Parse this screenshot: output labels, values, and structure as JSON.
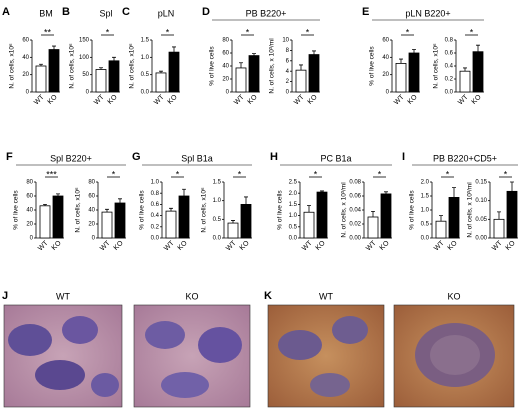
{
  "chart_data": [
    {
      "type": "bar",
      "panel": "A",
      "title": "BM",
      "ylabel": "N. of cells, x10⁶",
      "categories": [
        "WT",
        "KO"
      ],
      "values": [
        30,
        49
      ],
      "errors": [
        2,
        4
      ],
      "significance": "**",
      "ylim": [
        0,
        60
      ],
      "yticks": [
        0,
        20,
        40,
        60
      ]
    },
    {
      "type": "bar",
      "panel": "B",
      "title": "Spl",
      "ylabel": "N. of cells, x10⁶",
      "categories": [
        "WT",
        "KO"
      ],
      "values": [
        65,
        90
      ],
      "errors": [
        5,
        10
      ],
      "significance": "*",
      "ylim": [
        0,
        150
      ],
      "yticks": [
        0,
        50,
        100,
        150
      ]
    },
    {
      "type": "bar",
      "panel": "C",
      "title": "pLN",
      "ylabel": "N. of cells, x10⁶",
      "categories": [
        "WT",
        "KO"
      ],
      "values": [
        0.55,
        1.15
      ],
      "errors": [
        0.05,
        0.15
      ],
      "significance": "*",
      "ylim": [
        0,
        1.5
      ],
      "yticks": [
        {
          "value": 0,
          "label": "0.0"
        },
        0.5,
        {
          "value": 1,
          "label": "1.0"
        },
        1.5
      ]
    },
    {
      "type": "bar",
      "panel": "D",
      "title": "PB B220+",
      "ylabel": "% of live cells",
      "categories": [
        "WT",
        "KO"
      ],
      "values": [
        37,
        56
      ],
      "errors": [
        8,
        3
      ],
      "significance": "*",
      "ylim": [
        0,
        80
      ],
      "yticks": [
        0,
        20,
        40,
        60,
        80
      ]
    },
    {
      "type": "bar",
      "ylabel": "N. of cells, x 10³/ml",
      "categories": [
        "WT",
        "KO"
      ],
      "values": [
        4.2,
        7.2
      ],
      "errors": [
        1.0,
        0.7
      ],
      "significance": "*",
      "ylim": [
        0,
        10
      ],
      "yticks": [
        0,
        2,
        4,
        6,
        8,
        10
      ]
    },
    {
      "type": "bar",
      "panel": "E",
      "title": "pLN B220+",
      "ylabel": "% of live cells",
      "categories": [
        "WT",
        "KO"
      ],
      "values": [
        33,
        45
      ],
      "errors": [
        5,
        4
      ],
      "significance": "*",
      "ylim": [
        0,
        60
      ],
      "yticks": [
        0,
        20,
        40,
        60
      ]
    },
    {
      "type": "bar",
      "ylabel": "N. of cells, x10⁶",
      "categories": [
        "WT",
        "KO"
      ],
      "values": [
        0.32,
        0.62
      ],
      "errors": [
        0.05,
        0.1
      ],
      "significance": "*",
      "ylim": [
        0,
        0.8
      ],
      "yticks": [
        {
          "value": 0,
          "label": "0.0"
        },
        0.2,
        0.4,
        0.6,
        0.8
      ]
    },
    {
      "type": "bar",
      "panel": "F",
      "title": "Spl B220+",
      "ylabel": "% of live cells",
      "categories": [
        "WT",
        "KO"
      ],
      "values": [
        46,
        60
      ],
      "errors": [
        2,
        3
      ],
      "significance": "***",
      "ylim": [
        0,
        80
      ],
      "yticks": [
        0,
        20,
        40,
        60,
        80
      ]
    },
    {
      "type": "bar",
      "ylabel": "N. of cells, x10⁶",
      "categories": [
        "WT",
        "KO"
      ],
      "values": [
        37,
        50
      ],
      "errors": [
        4,
        6
      ],
      "significance": "*",
      "ylim": [
        0,
        80
      ],
      "yticks": [
        0,
        20,
        40,
        60,
        80
      ]
    },
    {
      "type": "bar",
      "panel": "G",
      "title": "Spl B1a",
      "ylabel": "% of live cells",
      "categories": [
        "WT",
        "KO"
      ],
      "values": [
        0.48,
        0.75
      ],
      "errors": [
        0.05,
        0.12
      ],
      "significance": "*",
      "ylim": [
        0,
        1
      ],
      "yticks": [
        {
          "value": 0,
          "label": "0.0"
        },
        0.2,
        0.4,
        0.6,
        0.8,
        {
          "value": 1,
          "label": "1.0"
        }
      ]
    },
    {
      "type": "bar",
      "ylabel": "N. of cells, x10⁶",
      "categories": [
        "WT",
        "KO"
      ],
      "values": [
        0.4,
        0.9
      ],
      "errors": [
        0.07,
        0.2
      ],
      "significance": "*",
      "ylim": [
        0,
        1.5
      ],
      "yticks": [
        {
          "value": 0,
          "label": "0.0"
        },
        0.5,
        {
          "value": 1,
          "label": "1.0"
        },
        1.5
      ]
    },
    {
      "type": "bar",
      "panel": "H",
      "title": "PC B1a",
      "ylabel": "% of live cells",
      "categories": [
        "WT",
        "KO"
      ],
      "values": [
        1.15,
        2.05
      ],
      "errors": [
        0.3,
        0.05
      ],
      "significance": "*",
      "ylim": [
        0,
        2.5
      ],
      "yticks": [
        {
          "value": 0,
          "label": "0.0"
        },
        0.5,
        {
          "value": 1,
          "label": "1.0"
        },
        1.5,
        {
          "value": 2,
          "label": "2.0"
        },
        2.5
      ]
    },
    {
      "type": "bar",
      "ylabel": "N. of cells, x 10³/ml",
      "categories": [
        "WT",
        "KO"
      ],
      "values": [
        0.03,
        0.063
      ],
      "errors": [
        0.008,
        0.003
      ],
      "significance": "*",
      "ylim": [
        0,
        0.08
      ],
      "yticks": [
        {
          "value": 0,
          "label": "0.00"
        },
        0.02,
        0.04,
        0.06,
        0.08
      ]
    },
    {
      "type": "bar",
      "panel": "I",
      "title": "PB B220+CD5+",
      "ylabel": "% of live cells",
      "categories": [
        "WT",
        "KO"
      ],
      "values": [
        0.6,
        1.45
      ],
      "errors": [
        0.2,
        0.35
      ],
      "significance": "*",
      "ylim": [
        0,
        2
      ],
      "yticks": [
        {
          "value": 0,
          "label": "0.0"
        },
        0.5,
        {
          "value": 1,
          "label": "1.0"
        },
        1.5,
        {
          "value": 2,
          "label": "2.0"
        }
      ]
    },
    {
      "type": "bar",
      "ylabel": "N. of cells, x 10³/ml",
      "categories": [
        "WT",
        "KO"
      ],
      "values": [
        0.05,
        0.125
      ],
      "errors": [
        0.02,
        0.025
      ],
      "significance": "*",
      "ylim": [
        0,
        0.15
      ],
      "yticks": [
        {
          "value": 0,
          "label": "0.00"
        },
        0.05,
        {
          "value": 0.1,
          "label": "0.10"
        },
        0.15
      ]
    }
  ],
  "images": [
    {
      "panel": "J",
      "labels": [
        "WT",
        "KO"
      ]
    },
    {
      "panel": "K",
      "labels": [
        "WT",
        "KO"
      ]
    }
  ]
}
